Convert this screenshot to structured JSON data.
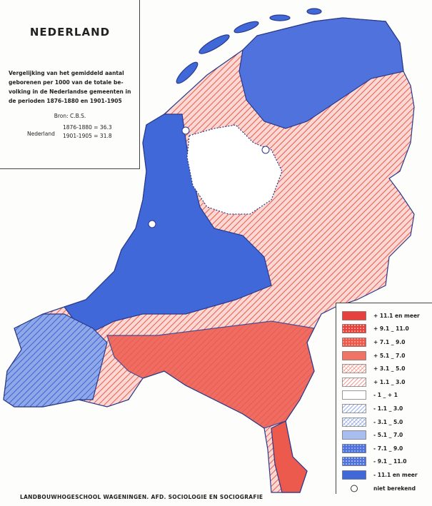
{
  "header": {
    "title": "NEDERLAND",
    "description": [
      "Vergelijking van het gemiddeld aantal",
      "geborenen per 1000 van de totale be-",
      "volking in de Nederlandse gemeenten in",
      "de perioden 1876-1880 en 1901-1905"
    ],
    "source": "Bron: C.B.S.",
    "country": "Nederland",
    "periods": [
      "1876-1880 = 36.3",
      "1901-1905 = 31.8"
    ]
  },
  "legend": {
    "items": [
      {
        "label": "+ 11.1 en meer",
        "color": "#e8403a",
        "pattern": "solid"
      },
      {
        "label": "+ 9.1 _ 11.0",
        "color": "#e8403a",
        "pattern": "dots"
      },
      {
        "label": "+ 7.1 _ 9.0",
        "color": "#ec5a4e",
        "pattern": "dense"
      },
      {
        "label": "+ 5.1 _ 7.0",
        "color": "#ef7466",
        "pattern": "solid"
      },
      {
        "label": "+ 3.1 _ 5.0",
        "color": "#f2958a",
        "pattern": "cross"
      },
      {
        "label": "+ 1.1 _ 3.0",
        "color": "#f2958a",
        "pattern": "hatch"
      },
      {
        "label": "- 1 _ + 1",
        "color": "#ffffff",
        "pattern": "solid"
      },
      {
        "label": "- 1.1 _ 3.0",
        "color": "#8fa8e8",
        "pattern": "hatch"
      },
      {
        "label": "- 3.1 _ 5.0",
        "color": "#8fa8e8",
        "pattern": "cross"
      },
      {
        "label": "- 5.1 _ 7.0",
        "color": "#a9bdf0",
        "pattern": "solid"
      },
      {
        "label": "- 7.1 _ 9.0",
        "color": "#4f72dc",
        "pattern": "dense"
      },
      {
        "label": "- 9.1 _ 11.0",
        "color": "#4f72dc",
        "pattern": "dots"
      },
      {
        "label": "- 11.1 en meer",
        "color": "#4068d8",
        "pattern": "solid"
      },
      {
        "label": "niet berekend",
        "color": "#ffffff",
        "pattern": "circle"
      }
    ]
  },
  "footer": "LANDBOUWHOGESCHOOL WAGENINGEN. AFD. SOCIOLOGIE EN SOCIOGRAFIE"
}
